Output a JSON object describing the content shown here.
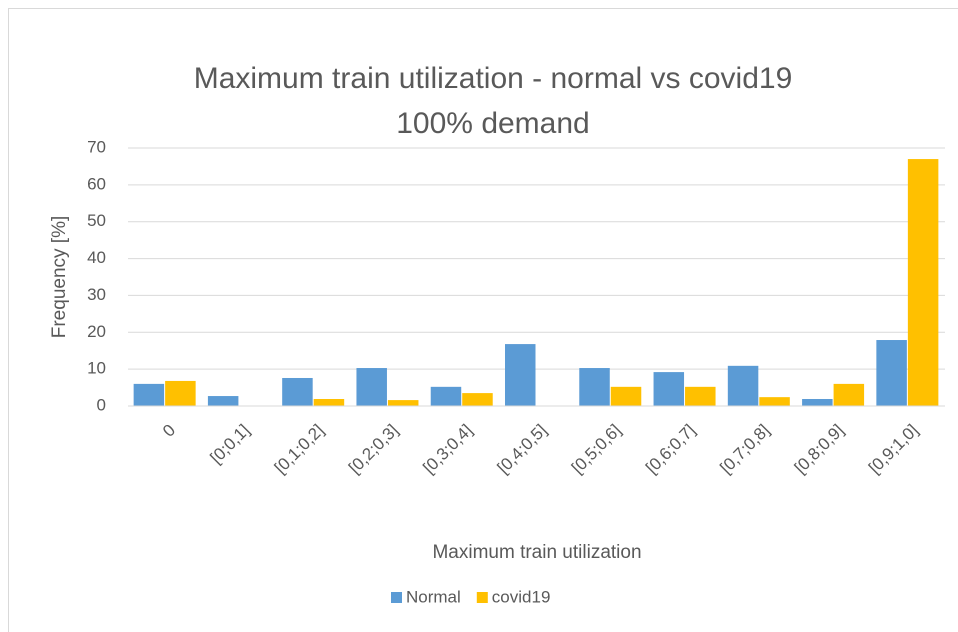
{
  "chart_data": {
    "type": "bar",
    "title": "Maximum train utilization - normal vs covid19",
    "subtitle": "100% demand",
    "x_label": "Maximum train utilization",
    "y_label": "Frequency [%]",
    "categories": [
      "0",
      "[0;0,1]",
      "[0,1;0,2]",
      "[0,2;0,3]",
      "[0,3;0,4]",
      "[0,4;0,5]",
      "[0,5;0,6]",
      "[0,6;0,7]",
      "[0,7;0,8]",
      "[0,8;0,9]",
      "[0,9;1,0]"
    ],
    "series": [
      {
        "name": "Normal",
        "color": "#5b9bd5",
        "values": [
          6.0,
          2.7,
          7.6,
          10.3,
          5.2,
          16.8,
          10.3,
          9.2,
          10.9,
          1.9,
          17.9
        ]
      },
      {
        "name": "covid19",
        "color": "#ffc000",
        "values": [
          6.8,
          0,
          1.9,
          1.6,
          3.5,
          0,
          5.2,
          5.2,
          2.4,
          6.0,
          67
        ]
      }
    ],
    "ylim": [
      0,
      70
    ],
    "yticks": [
      0,
      10,
      20,
      30,
      40,
      50,
      60,
      70
    ],
    "grid": true,
    "legend": "bottom"
  }
}
